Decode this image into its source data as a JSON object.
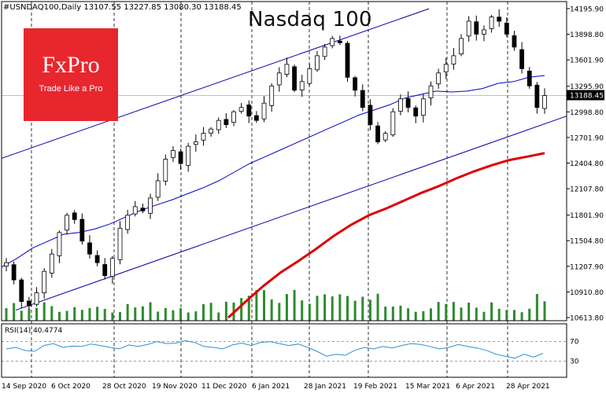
{
  "header": {
    "symbol_info": "#USNDAQ100,Daily  13107.55 13227.85 13080.30 13188.45",
    "title": "Nasdaq 100"
  },
  "logo": {
    "main": "FxPro",
    "tagline": "Trade Like a Pro"
  },
  "rsi": {
    "label": "RSI(14) 40.4774",
    "levels": [
      "70",
      "30"
    ]
  },
  "chart_data": {
    "type": "candlestick",
    "title": "Nasdaq 100",
    "price_ticks": [
      14195.9,
      13898.8,
      13601.9,
      13295.9,
      12998.8,
      12701.9,
      12404.8,
      12107.8,
      11801.9,
      11504.8,
      11207.9,
      10910.8,
      10613.8
    ],
    "price_tick_labels": [
      "14195.90",
      "13898.80",
      "13601.90",
      "13295.90",
      "12998.80",
      "12701.90",
      "12404.80",
      "12107.80",
      "11801.90",
      "11504.80",
      "11207.90",
      "10910.80",
      "10613.80"
    ],
    "current_price": 13188.45,
    "current_price_label": "13188.45",
    "date_labels": [
      "14 Sep 2020",
      "6 Oct 2020",
      "28 Oct 2020",
      "19 Nov 2020",
      "11 Dec 2020",
      "6 Jan 2021",
      "28 Jan 2021",
      "19 Feb 2021",
      "15 Mar 2021",
      "6 Apr 2021",
      "28 Apr 2021"
    ],
    "ylim": [
      10613.8,
      14195.9
    ],
    "close_path": [
      11250,
      11050,
      10800,
      10750,
      10900,
      11150,
      11350,
      11600,
      11800,
      11750,
      11500,
      11350,
      11250,
      11100,
      11300,
      11650,
      11800,
      11900,
      11850,
      12000,
      12200,
      12450,
      12550,
      12400,
      12600,
      12650,
      12750,
      12800,
      12900,
      12850,
      13000,
      13050,
      12950,
      12900,
      13100,
      13300,
      13450,
      13550,
      13250,
      13350,
      13500,
      13650,
      13750,
      13850,
      13800,
      13400,
      13250,
      13050,
      12850,
      12650,
      12750,
      13000,
      13150,
      13050,
      12950,
      13150,
      13300,
      13450,
      13550,
      13650,
      13850,
      14050,
      13900,
      13950,
      14100,
      14050,
      13900,
      13750,
      13500,
      13300,
      13050,
      13188
    ],
    "ma50_path": [
      11200,
      11300,
      11420,
      11500,
      11580,
      11600,
      11640,
      11700,
      11780,
      11860,
      11920,
      11980,
      12050,
      12120,
      12200,
      12300,
      12400,
      12480,
      12560,
      12640,
      12720,
      12800,
      12880,
      12960,
      13020,
      13080,
      13160,
      13200,
      13240,
      13230,
      13240,
      13270,
      13330,
      13350,
      13400,
      13420
    ],
    "ma200_path": [
      10613,
      10800,
      10980,
      11140,
      11270,
      11410,
      11560,
      11690,
      11800,
      11880,
      11970,
      12060,
      12140,
      12230,
      12310,
      12380,
      12440,
      12480,
      12520
    ],
    "channel_upper": [
      [
        0,
        12460
      ],
      [
        1,
        14195
      ]
    ],
    "channel_lower": [
      [
        0,
        10700
      ],
      [
        1,
        12950
      ]
    ],
    "rsi_path": [
      55,
      58,
      52,
      50,
      62,
      66,
      58,
      61,
      60,
      65,
      62,
      58,
      55,
      63,
      60,
      64,
      70,
      66,
      67,
      72,
      68,
      60,
      58,
      55,
      63,
      67,
      62,
      68,
      70,
      66,
      62,
      65,
      58,
      50,
      40,
      44,
      42,
      52,
      58,
      55,
      60,
      57,
      62,
      66,
      64,
      60,
      55,
      58,
      64,
      60,
      57,
      52,
      44,
      40,
      36,
      44,
      38,
      46
    ]
  }
}
